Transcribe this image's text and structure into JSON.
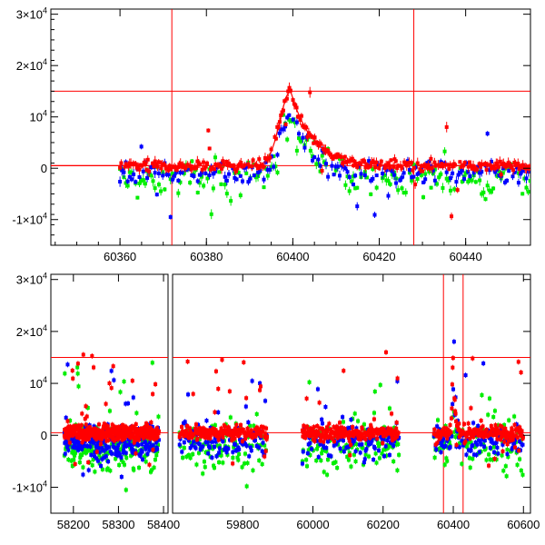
{
  "colors": {
    "red": "#ff0000",
    "green": "#00ee00",
    "blue": "#0000ff",
    "frame": "#000000",
    "lines": "#ff0000"
  },
  "chart_data": [
    {
      "type": "scatter",
      "xlim": [
        60344,
        60455
      ],
      "ylim": [
        -15000,
        31000
      ],
      "x_ticks": [
        60360,
        60380,
        60400,
        60420,
        60440
      ],
      "y_ticks": [
        {
          "value": -10000,
          "label": "-1×10",
          "exp": "4"
        },
        {
          "value": 0,
          "label": "0",
          "exp": ""
        },
        {
          "value": 10000,
          "label": "10",
          "exp": "4"
        },
        {
          "value": 20000,
          "label": "2×10",
          "exp": "4"
        },
        {
          "value": 30000,
          "label": "3×10",
          "exp": "4"
        }
      ],
      "hlines": [
        15000,
        500
      ],
      "vlines": [
        60372,
        60428
      ],
      "model": {
        "base": 500,
        "peak_x": 60399.5,
        "peak_y": 15000,
        "rise_width": 3.5,
        "decay_tau": 5
      },
      "series": [
        {
          "color": "green",
          "segments": [
            [
              60360,
              60455,
              0,
              5000
            ]
          ]
        },
        {
          "color": "blue",
          "segments": [
            [
              60360,
              60455,
              -500,
              3500
            ]
          ]
        },
        {
          "color": "red",
          "segments": [
            [
              60360,
              60455,
              500,
              1500
            ]
          ]
        }
      ],
      "grid": false
    },
    {
      "type": "scatter",
      "xlim": [
        58150,
        58410
      ],
      "xlim_right": [
        59600,
        60620
      ],
      "ylim": [
        -15000,
        31000
      ],
      "x_ticks_left": [
        58200,
        58300,
        58400
      ],
      "x_ticks_right": [
        59800,
        60000,
        60200,
        60400,
        60600
      ],
      "y_ticks": [
        {
          "value": -10000,
          "label": "-1×10",
          "exp": "4"
        },
        {
          "value": 0,
          "label": "0",
          "exp": ""
        },
        {
          "value": 10000,
          "label": "10",
          "exp": "4"
        },
        {
          "value": 20000,
          "label": "2×10",
          "exp": "4"
        },
        {
          "value": 30000,
          "label": "3×10",
          "exp": "4"
        }
      ],
      "hlines": [
        15000,
        500
      ],
      "vlines": [
        60372,
        60428
      ],
      "seasons": [
        [
          58180,
          58390
        ],
        [
          59620,
          59870
        ],
        [
          59970,
          60245
        ],
        [
          60345,
          60600
        ]
      ],
      "grid": false
    }
  ]
}
